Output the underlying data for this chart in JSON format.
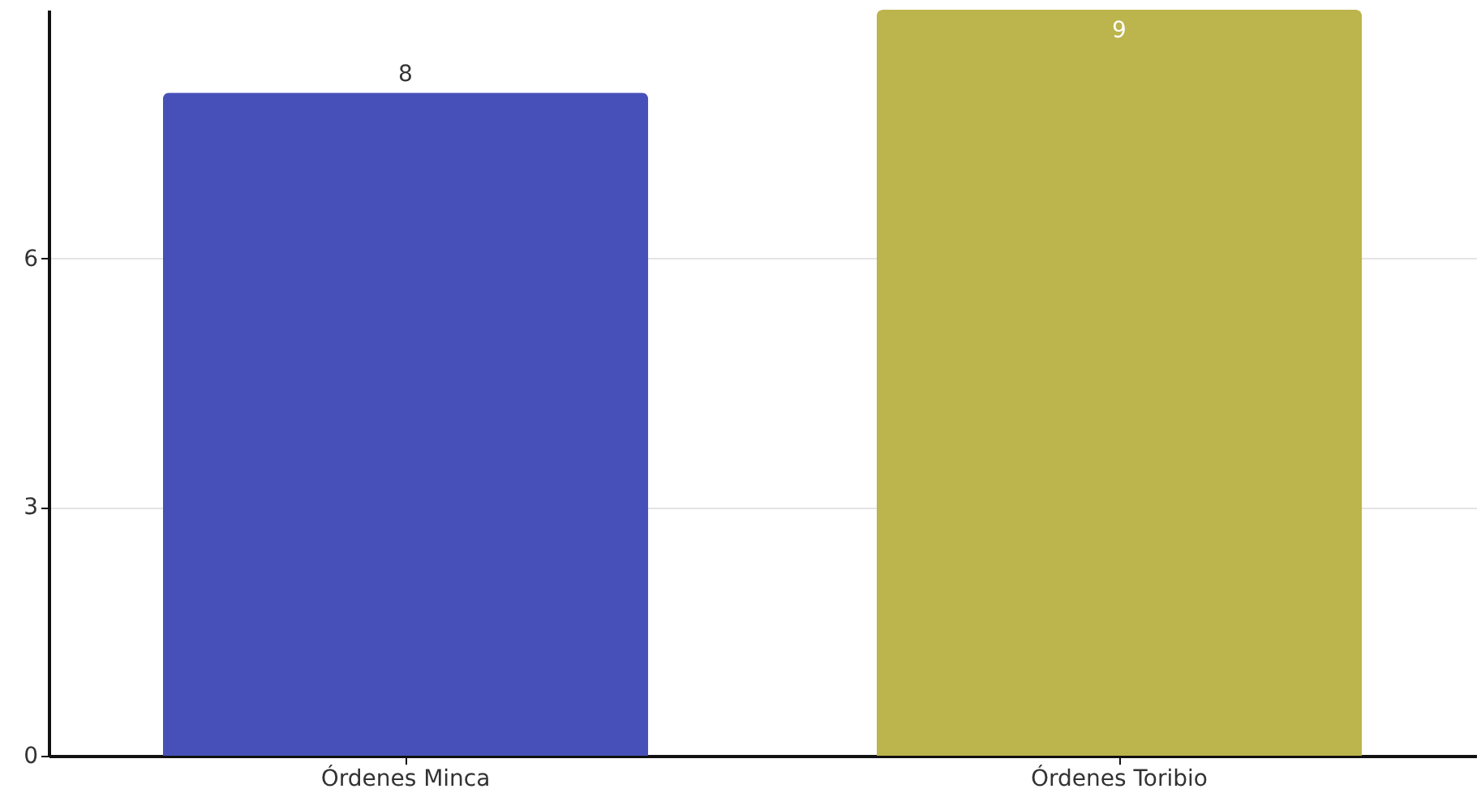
{
  "chart_data": {
    "type": "bar",
    "categories": [
      "Órdenes Minca",
      "Órdenes Toribio"
    ],
    "values": [
      8,
      9
    ],
    "colors": [
      "#4750b9",
      "#bcb44c"
    ],
    "ylim": [
      0,
      9
    ],
    "yticks": [
      0,
      3,
      6
    ],
    "grid": "y",
    "data_labels": true
  }
}
